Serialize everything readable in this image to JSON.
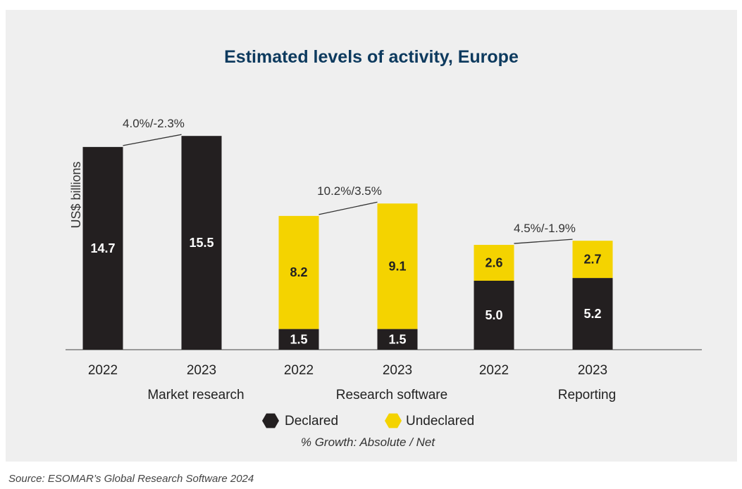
{
  "chart_data": {
    "type": "bar",
    "stacked": true,
    "title": "Estimated levels of activity, Europe",
    "ylabel": "US$ billions",
    "groups": [
      {
        "name": "Market research",
        "years": [
          "2022",
          "2023"
        ],
        "stacks": [
          {
            "declared": 14.7,
            "undeclared": null,
            "declared_label": "14.7",
            "undeclared_label": ""
          },
          {
            "declared": 15.5,
            "undeclared": null,
            "declared_label": "15.5",
            "undeclared_label": ""
          }
        ],
        "growth": "4.0%/-2.3%"
      },
      {
        "name": "Research software",
        "years": [
          "2022",
          "2023"
        ],
        "stacks": [
          {
            "declared": 1.5,
            "undeclared": 8.2,
            "declared_label": "1.5",
            "undeclared_label": "8.2"
          },
          {
            "declared": 1.5,
            "undeclared": 9.1,
            "declared_label": "1.5",
            "undeclared_label": "9.1"
          }
        ],
        "growth": "10.2%/3.5%"
      },
      {
        "name": "Reporting",
        "years": [
          "2022",
          "2023"
        ],
        "stacks": [
          {
            "declared": 5.0,
            "undeclared": 2.6,
            "declared_label": "5.0",
            "undeclared_label": "2.6"
          },
          {
            "declared": 5.2,
            "undeclared": 2.7,
            "declared_label": "5.2",
            "undeclared_label": "2.7"
          }
        ],
        "growth": "4.5%/-1.9%"
      }
    ],
    "legend": [
      {
        "name": "Declared",
        "color": "#231f20"
      },
      {
        "name": "Undeclared",
        "color": "#f4d300"
      }
    ],
    "legend_position": "bottom",
    "note": "% Growth: Absolute / Net",
    "grid": false
  },
  "source": "Source: ESOMAR’s Global Research Software 2024"
}
